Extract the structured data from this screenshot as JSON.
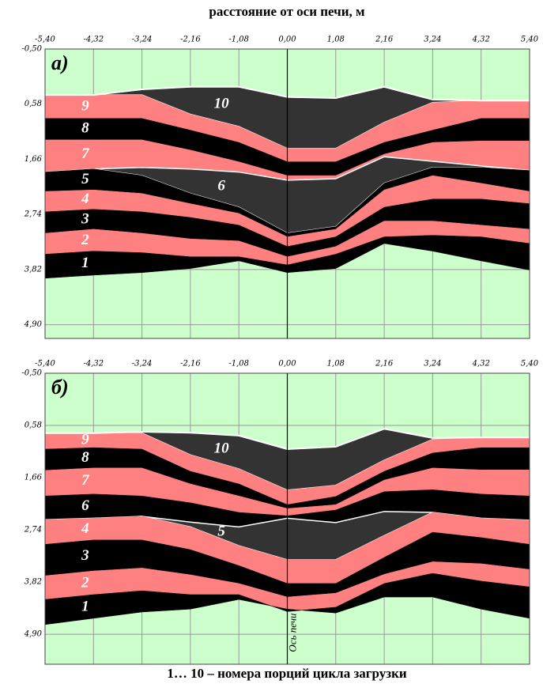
{
  "chart_data": [
    {
      "type": "area",
      "xlabel": "расстояние от оси печи, м",
      "panel_label": "а)",
      "grid": true,
      "background": "#ccffcc",
      "x": [
        -5.4,
        -4.32,
        -3.24,
        -2.16,
        -1.08,
        0,
        1.08,
        2.16,
        3.24,
        4.32,
        5.4
      ],
      "xlim": [
        -5.4,
        5.4
      ],
      "ylim": [
        -0.5,
        5.17
      ],
      "xticks": [
        {
          "value": -5.4,
          "label": "-5,40"
        },
        {
          "value": -4.32,
          "label": "-4,32"
        },
        {
          "value": -3.24,
          "label": "-3,24"
        },
        {
          "value": -2.16,
          "label": "-2,16"
        },
        {
          "value": -1.08,
          "label": "-1,08"
        },
        {
          "value": 0,
          "label": "0,00"
        },
        {
          "value": 1.08,
          "label": "1,08"
        },
        {
          "value": 2.16,
          "label": "2,16"
        },
        {
          "value": 3.24,
          "label": "3,24"
        },
        {
          "value": 4.32,
          "label": "4,32"
        },
        {
          "value": 5.4,
          "label": "5,40"
        }
      ],
      "yticks": [
        {
          "value": -0.5,
          "label": "-0,50"
        },
        {
          "value": 0.58,
          "label": "0,58"
        },
        {
          "value": 1.66,
          "label": "1,66"
        },
        {
          "value": 2.74,
          "label": "2,74"
        },
        {
          "value": 3.82,
          "label": "3,82"
        },
        {
          "value": 4.9,
          "label": "4,90"
        }
      ],
      "surface": [
        0.4,
        0.4,
        0.29,
        0.24,
        0.24,
        0.44,
        0.46,
        0.24,
        0.49,
        0.51,
        0.51
      ],
      "series": [
        {
          "name": "10",
          "color": "#333333",
          "values": [
            0.4,
            0.4,
            0.4,
            0.78,
            1.02,
            1.45,
            1.45,
            0.94,
            0.55,
            0.51,
            0.51
          ]
        },
        {
          "name": "9",
          "color": "#ff8080",
          "values": [
            0.86,
            0.86,
            0.86,
            1.09,
            1.33,
            1.71,
            1.71,
            1.33,
            1.09,
            0.86,
            0.86
          ]
        },
        {
          "name": "8",
          "color": "#000000",
          "values": [
            1.28,
            1.28,
            1.28,
            1.48,
            1.71,
            1.98,
            1.98,
            1.56,
            1.33,
            1.3,
            1.3
          ]
        },
        {
          "name": "7",
          "color": "#ff8080",
          "values": [
            1.91,
            1.85,
            1.82,
            1.85,
            1.91,
            2.07,
            2.04,
            1.61,
            1.7,
            1.79,
            1.88
          ]
        },
        {
          "name": "6",
          "color": "#333333",
          "values": [
            1.91,
            1.85,
            1.98,
            2.33,
            2.6,
            3.11,
            2.98,
            2.13,
            1.82,
            1.82,
            1.88
          ]
        },
        {
          "name": "5",
          "color": "#000000",
          "values": [
            2.29,
            2.26,
            2.33,
            2.53,
            2.72,
            3.18,
            3.03,
            2.26,
            1.98,
            2.13,
            2.29
          ]
        },
        {
          "name": "4",
          "color": "#ff8080",
          "values": [
            2.69,
            2.64,
            2.69,
            2.8,
            2.95,
            3.37,
            3.18,
            2.6,
            2.44,
            2.44,
            2.53
          ]
        },
        {
          "name": "3",
          "color": "#000000",
          "values": [
            3.11,
            3.03,
            3.11,
            3.22,
            3.26,
            3.57,
            3.37,
            2.87,
            2.87,
            2.95,
            3.03
          ]
        },
        {
          "name": "2",
          "color": "#ff8080",
          "values": [
            3.52,
            3.46,
            3.49,
            3.57,
            3.57,
            3.73,
            3.52,
            3.18,
            3.15,
            3.18,
            3.31
          ]
        },
        {
          "name": "1",
          "color": "#000000",
          "values": [
            3.99,
            3.93,
            3.88,
            3.8,
            3.65,
            3.88,
            3.8,
            3.31,
            3.46,
            3.65,
            3.83
          ]
        }
      ]
    },
    {
      "type": "area",
      "panel_label": "б)",
      "annotation": "Ось печи",
      "caption": "1… 10 – номера порций цикла загрузки",
      "grid": true,
      "background": "#ccffcc",
      "x": [
        -5.4,
        -4.32,
        -3.24,
        -2.16,
        -1.08,
        0,
        1.08,
        2.16,
        3.24,
        4.32,
        5.4
      ],
      "xlim": [
        -5.4,
        5.4
      ],
      "ylim": [
        -0.5,
        5.52
      ],
      "xticks": [
        {
          "value": -5.4,
          "label": "-5,40"
        },
        {
          "value": -4.32,
          "label": "-4,32"
        },
        {
          "value": -3.24,
          "label": "-3,24"
        },
        {
          "value": -2.16,
          "label": "-2,16"
        },
        {
          "value": -1.08,
          "label": "-1,08"
        },
        {
          "value": 0,
          "label": "0,00"
        },
        {
          "value": 1.08,
          "label": "1,08"
        },
        {
          "value": 2.16,
          "label": "2,16"
        },
        {
          "value": 3.24,
          "label": "3,24"
        },
        {
          "value": 4.32,
          "label": "4,32"
        },
        {
          "value": 5.4,
          "label": "5,40"
        }
      ],
      "yticks": [
        {
          "value": -0.5,
          "label": "-0,50"
        },
        {
          "value": 0.58,
          "label": "0,58"
        },
        {
          "value": 1.66,
          "label": "1,66"
        },
        {
          "value": 2.74,
          "label": "2,74"
        },
        {
          "value": 3.82,
          "label": "3,82"
        },
        {
          "value": 4.9,
          "label": "4,90"
        }
      ],
      "surface": [
        0.74,
        0.74,
        0.71,
        0.73,
        0.79,
        1.07,
        1.02,
        0.65,
        0.84,
        0.83,
        0.83
      ],
      "series": [
        {
          "name": "10",
          "color": "#333333",
          "values": [
            0.74,
            0.74,
            0.74,
            1.19,
            1.48,
            1.92,
            1.82,
            1.3,
            0.87,
            0.83,
            0.83
          ]
        },
        {
          "name": "9",
          "color": "#ff8080",
          "values": [
            1.07,
            1.04,
            1.07,
            1.53,
            1.79,
            2.22,
            2.05,
            1.53,
            1.15,
            1.04,
            1.04
          ]
        },
        {
          "name": "8",
          "color": "#000000",
          "values": [
            1.51,
            1.46,
            1.46,
            1.79,
            2.04,
            2.3,
            2.22,
            1.71,
            1.46,
            1.5,
            1.5
          ]
        },
        {
          "name": "7",
          "color": "#ff8080",
          "values": [
            2.04,
            2.0,
            2.04,
            2.18,
            2.38,
            2.45,
            2.33,
            1.95,
            1.91,
            2.0,
            2.04
          ]
        },
        {
          "name": "6",
          "color": "#000000",
          "values": [
            2.53,
            2.5,
            2.46,
            2.58,
            2.68,
            2.5,
            2.59,
            2.36,
            2.38,
            2.5,
            2.54
          ]
        },
        {
          "name": "5",
          "color": "#333333",
          "values": [
            2.53,
            2.5,
            2.46,
            2.68,
            3.07,
            3.36,
            3.36,
            2.86,
            2.38,
            2.5,
            2.54
          ]
        },
        {
          "name": "4",
          "color": "#ff8080",
          "values": [
            3.04,
            2.95,
            2.95,
            3.15,
            3.48,
            3.85,
            3.85,
            3.31,
            2.79,
            2.9,
            3.04
          ]
        },
        {
          "name": "3",
          "color": "#000000",
          "values": [
            3.69,
            3.59,
            3.53,
            3.67,
            3.85,
            4.13,
            4.05,
            3.66,
            3.4,
            3.44,
            3.56
          ]
        },
        {
          "name": "2",
          "color": "#ff8080",
          "values": [
            4.18,
            4.08,
            4.0,
            4.08,
            4.08,
            4.43,
            4.34,
            3.85,
            3.64,
            3.8,
            3.92
          ]
        },
        {
          "name": "1",
          "color": "#000000",
          "values": [
            4.7,
            4.57,
            4.44,
            4.38,
            4.18,
            4.38,
            4.46,
            4.13,
            4.13,
            4.38,
            4.57
          ]
        }
      ]
    }
  ]
}
